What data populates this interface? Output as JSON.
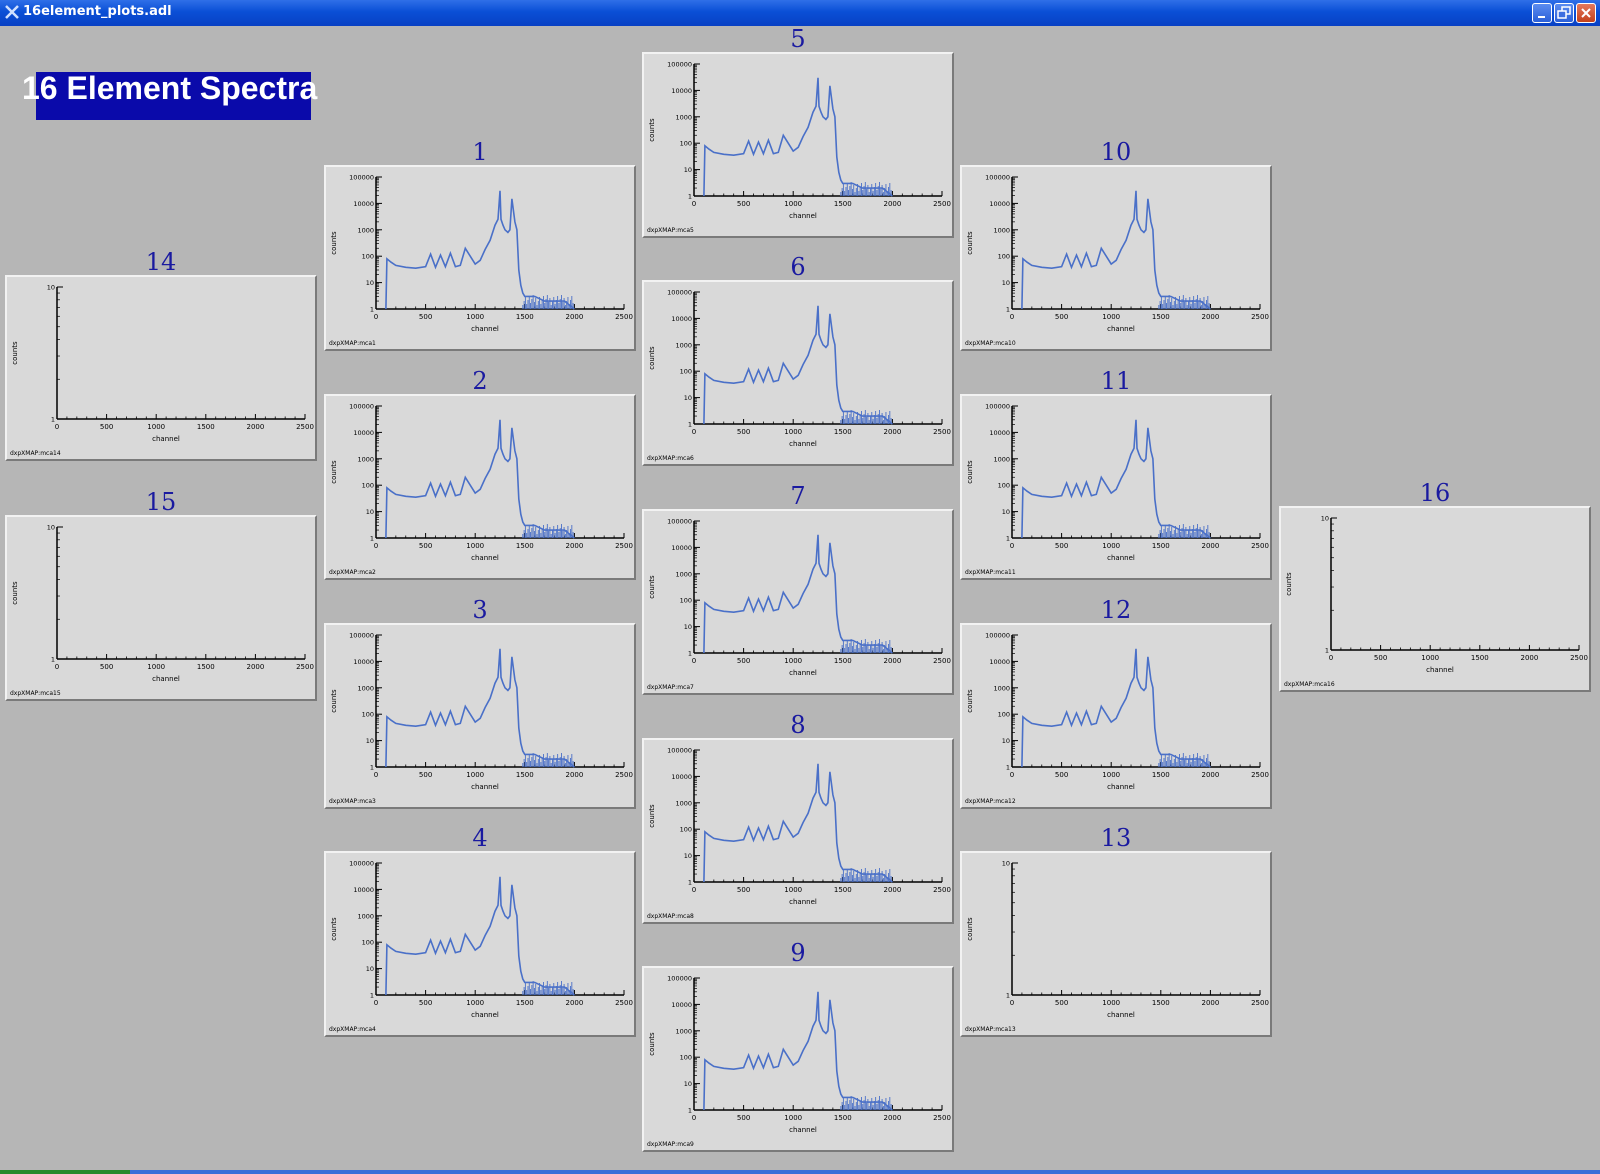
{
  "window": {
    "title": "16element_plots.adl"
  },
  "banner": {
    "text": "16 Element Spectra"
  },
  "axis": {
    "ylabel": "counts",
    "xlabel": "channel",
    "xticks": [
      "0",
      "500",
      "1000",
      "1500",
      "2000",
      "2500"
    ],
    "yticks_log": [
      "1",
      "10",
      "100",
      "1000",
      "10000",
      "100000"
    ],
    "yticks_empty": [
      "1",
      "10"
    ]
  },
  "colors": {
    "trace": "#4a70c8",
    "banner_bg": "#0a0aaa",
    "number": "#1a1aa0",
    "panel": "#d9d9d9",
    "background": "#b6b6b6"
  },
  "plots": [
    {
      "number": "1",
      "source": "dxpXMAP:mca1",
      "has_data": true
    },
    {
      "number": "2",
      "source": "dxpXMAP:mca2",
      "has_data": true
    },
    {
      "number": "3",
      "source": "dxpXMAP:mca3",
      "has_data": true
    },
    {
      "number": "4",
      "source": "dxpXMAP:mca4",
      "has_data": true
    },
    {
      "number": "5",
      "source": "dxpXMAP:mca5",
      "has_data": true
    },
    {
      "number": "6",
      "source": "dxpXMAP:mca6",
      "has_data": true
    },
    {
      "number": "7",
      "source": "dxpXMAP:mca7",
      "has_data": true
    },
    {
      "number": "8",
      "source": "dxpXMAP:mca8",
      "has_data": true
    },
    {
      "number": "9",
      "source": "dxpXMAP:mca9",
      "has_data": true
    },
    {
      "number": "10",
      "source": "dxpXMAP:mca10",
      "has_data": true
    },
    {
      "number": "11",
      "source": "dxpXMAP:mca11",
      "has_data": true
    },
    {
      "number": "12",
      "source": "dxpXMAP:mca12",
      "has_data": true
    },
    {
      "number": "13",
      "source": "dxpXMAP:mca13",
      "has_data": false
    },
    {
      "number": "14",
      "source": "dxpXMAP:mca14",
      "has_data": false
    },
    {
      "number": "15",
      "source": "dxpXMAP:mca15",
      "has_data": false
    },
    {
      "number": "16",
      "source": "dxpXMAP:mca16",
      "has_data": false
    }
  ],
  "chart_data": {
    "type": "line",
    "x_range": [
      0,
      2500
    ],
    "y_range": [
      1,
      100000
    ],
    "y_scale": "log",
    "grid": false,
    "legend": "none",
    "series": [
      {
        "x": [
          100,
          110,
          150,
          200,
          300,
          400,
          500,
          550,
          600,
          650,
          700,
          750,
          800,
          850,
          900,
          1000,
          1050,
          1100,
          1150,
          1200,
          1230,
          1250,
          1260,
          1280,
          1300,
          1330,
          1350,
          1370,
          1400,
          1420,
          1440,
          1460,
          1480,
          1500,
          1600,
          1700,
          1800,
          1900,
          2000
        ],
        "values": [
          1,
          80,
          60,
          45,
          38,
          35,
          40,
          120,
          38,
          110,
          40,
          130,
          40,
          45,
          200,
          50,
          70,
          180,
          400,
          1500,
          2500,
          30000,
          2500,
          1500,
          1000,
          800,
          1000,
          15000,
          2000,
          1000,
          30,
          8,
          4,
          3,
          3,
          2,
          2,
          2,
          1
        ]
      }
    ]
  }
}
